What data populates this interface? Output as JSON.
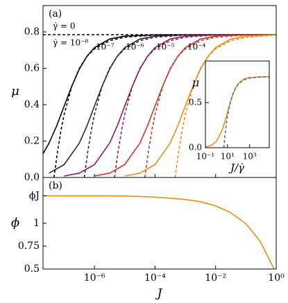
{
  "chart_data": [
    {
      "type": "line",
      "panel_label": "(a)",
      "ylabel": "μ",
      "xscale": "log",
      "show_xtick_labels": false,
      "xlim": [
        2e-08,
        1
      ],
      "ylim": [
        0,
        0.945
      ],
      "xticks": [
        {
          "value": 1e-06,
          "label": "10⁻⁶"
        },
        {
          "value": 0.0001,
          "label": "10⁻⁴"
        },
        {
          "value": 0.01,
          "label": "10⁻²"
        },
        {
          "value": 1,
          "label": "10⁰"
        }
      ],
      "yticks": [
        {
          "value": 0,
          "label": "0.0"
        },
        0.2,
        0.4,
        0.6,
        0.8
      ],
      "series": [
        {
          "name": "γ̇ = 0",
          "color": "#000000",
          "linestyle": "dashed",
          "x": [
            2e-08,
            1
          ],
          "values": [
            0.785,
            0.785
          ]
        },
        {
          "name": "γ̇ = 10⁻⁸",
          "color": "#000000",
          "linestyle": "solid",
          "x": [
            2e-08,
            3.16e-08,
            5.62e-08,
            1e-07,
            1.78e-07,
            3.16e-07,
            5.62e-07,
            1e-06,
            3.16e-06,
            1e-05,
            0.0001,
            1
          ],
          "values": [
            0.131,
            0.189,
            0.283,
            0.393,
            0.502,
            0.596,
            0.666,
            0.714,
            0.761,
            0.777,
            0.784,
            0.785
          ]
        },
        {
          "color": "#000000",
          "linestyle": "dashed",
          "x": [
            4.6e-08,
            6e-08,
            8e-08,
            1e-07,
            1.78e-07,
            3.16e-07,
            5.62e-07,
            1e-06,
            3.16e-06,
            1e-05,
            0.0001,
            1
          ],
          "values": [
            0,
            0.141,
            0.267,
            0.347,
            0.501,
            0.6,
            0.665,
            0.707,
            0.752,
            0.771,
            0.783,
            0.785
          ]
        },
        {
          "name": "10⁻⁷",
          "color": "#3b1845",
          "linestyle": "solid",
          "x": [
            3.16e-08,
            1e-07,
            3.16e-07,
            5.62e-07,
            1e-06,
            1.78e-06,
            3.16e-06,
            5.62e-06,
            1e-05,
            3.16e-05,
            0.0001,
            0.001,
            1
          ],
          "values": [
            0.024,
            0.071,
            0.189,
            0.283,
            0.393,
            0.502,
            0.596,
            0.666,
            0.714,
            0.761,
            0.777,
            0.784,
            0.785
          ]
        },
        {
          "color": "#3b1845",
          "linestyle": "dashed",
          "x": [
            4.6e-07,
            6e-07,
            8e-07,
            1e-06,
            1.78e-06,
            3.16e-06,
            5.62e-06,
            1e-05,
            3.16e-05,
            0.0001,
            0.001,
            1
          ],
          "values": [
            0,
            0.141,
            0.267,
            0.347,
            0.501,
            0.6,
            0.665,
            0.707,
            0.752,
            0.771,
            0.783,
            0.785
          ]
        },
        {
          "name": "10⁻⁶",
          "color": "#8b1a5a",
          "linestyle": "solid",
          "x": [
            1e-07,
            3.16e-07,
            1e-06,
            3.16e-06,
            5.62e-06,
            1e-05,
            1.78e-05,
            3.16e-05,
            5.62e-05,
            0.0001,
            0.000316,
            0.001,
            0.01,
            1
          ],
          "values": [
            0.008,
            0.024,
            0.071,
            0.189,
            0.283,
            0.393,
            0.502,
            0.596,
            0.666,
            0.714,
            0.761,
            0.777,
            0.784,
            0.785
          ]
        },
        {
          "color": "#8b1a5a",
          "linestyle": "dashed",
          "x": [
            4.6e-06,
            6e-06,
            8e-06,
            1e-05,
            1.78e-05,
            3.16e-05,
            5.62e-05,
            0.0001,
            0.000316,
            0.001,
            0.01,
            1
          ],
          "values": [
            0,
            0.141,
            0.267,
            0.347,
            0.501,
            0.6,
            0.665,
            0.707,
            0.752,
            0.771,
            0.783,
            0.785
          ]
        },
        {
          "name": "10⁻⁵",
          "color": "#c8352b",
          "linestyle": "solid",
          "x": [
            1e-06,
            3.16e-06,
            1e-05,
            3.16e-05,
            5.62e-05,
            0.0001,
            0.000178,
            0.000316,
            0.000562,
            0.001,
            0.00316,
            0.01,
            0.1,
            1
          ],
          "values": [
            0.008,
            0.024,
            0.071,
            0.189,
            0.283,
            0.393,
            0.502,
            0.596,
            0.666,
            0.714,
            0.761,
            0.777,
            0.784,
            0.785
          ]
        },
        {
          "color": "#c8352b",
          "linestyle": "dashed",
          "x": [
            4.6e-05,
            6e-05,
            8e-05,
            0.0001,
            0.000178,
            0.000316,
            0.000562,
            0.001,
            0.00316,
            0.01,
            0.1,
            1
          ],
          "values": [
            0,
            0.141,
            0.267,
            0.347,
            0.501,
            0.6,
            0.665,
            0.707,
            0.752,
            0.771,
            0.783,
            0.785
          ]
        },
        {
          "name": "10⁻⁴",
          "color": "#ef8a10",
          "linestyle": "solid",
          "x": [
            1e-05,
            3.16e-05,
            0.0001,
            0.000316,
            0.000562,
            0.001,
            0.00178,
            0.00316,
            0.00562,
            0.01,
            0.0316,
            0.1,
            1
          ],
          "values": [
            0.008,
            0.024,
            0.071,
            0.189,
            0.283,
            0.393,
            0.502,
            0.596,
            0.666,
            0.714,
            0.761,
            0.777,
            0.784
          ]
        },
        {
          "color": "#ef8a10",
          "linestyle": "dashed",
          "x": [
            0.00046,
            0.0006,
            0.0008,
            0.001,
            0.00178,
            0.00316,
            0.00562,
            0.01,
            0.0316,
            0.1,
            1
          ],
          "values": [
            0,
            0.141,
            0.267,
            0.347,
            0.501,
            0.6,
            0.665,
            0.707,
            0.752,
            0.771,
            0.783
          ]
        }
      ]
    },
    {
      "type": "line",
      "panel_label": "(b)",
      "ylabel": "ϕ",
      "xlabel": "J",
      "xscale": "log",
      "show_xtick_labels": true,
      "xlim": [
        2e-08,
        1
      ],
      "ylim": [
        0.5,
        1.5
      ],
      "xticks": [
        {
          "value": 1e-06,
          "label": "10⁻⁶"
        },
        {
          "value": 0.0001,
          "label": "10⁻⁴"
        },
        {
          "value": 0.01,
          "label": "10⁻²"
        },
        {
          "value": 1,
          "label": "10⁰"
        }
      ],
      "yticks": [
        0.5,
        0.75,
        1,
        {
          "value": 1.3,
          "label": "ϕJ"
        }
      ],
      "series": [
        {
          "color": "#ef8a10",
          "linestyle": "solid",
          "x": [
            2e-08,
            1e-06,
            1e-05,
            0.0001,
            0.001,
            0.003,
            0.01,
            0.03,
            0.1,
            0.3,
            0.85
          ],
          "values": [
            1.3,
            1.3,
            1.299,
            1.286,
            1.26,
            1.237,
            1.19,
            1.12,
            0.995,
            0.8,
            0.5
          ]
        }
      ]
    },
    {
      "type": "line",
      "ylabel": "μ",
      "xlabel": "J/γ̇",
      "xscale": "log",
      "show_xtick_labels": true,
      "xlim": [
        0.1,
        60000
      ],
      "ylim": [
        0,
        0.96
      ],
      "xticks": [
        {
          "value": 0.1,
          "label": "10⁻¹"
        },
        {
          "value": 10,
          "label": "10¹"
        },
        {
          "value": 1000,
          "label": "10³"
        }
      ],
      "yticks": [
        {
          "value": 0,
          "label": "0.0"
        },
        0.5
      ],
      "series": [
        {
          "color": "#ef8a10",
          "linestyle": "solid",
          "x": [
            0.1,
            0.316,
            1,
            3.16,
            5.62,
            10,
            17.8,
            31.6,
            56.2,
            100,
            316,
            1000,
            10000,
            60000
          ],
          "values": [
            0.008,
            0.024,
            0.071,
            0.189,
            0.283,
            0.393,
            0.502,
            0.596,
            0.666,
            0.714,
            0.761,
            0.777,
            0.784,
            0.785
          ]
        },
        {
          "color": "#5a6e90",
          "linestyle": "dashed",
          "x": [
            4.6,
            6,
            8,
            10,
            17.8,
            31.6,
            56.2,
            100,
            316,
            1000,
            10000,
            60000
          ],
          "values": [
            0,
            0.141,
            0.267,
            0.347,
            0.501,
            0.6,
            0.665,
            0.707,
            0.752,
            0.771,
            0.783,
            0.785
          ]
        }
      ]
    }
  ]
}
